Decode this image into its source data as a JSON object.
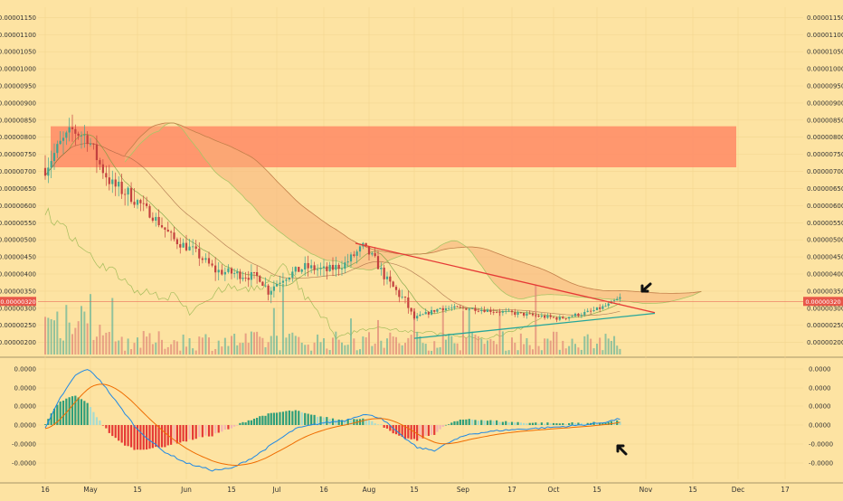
{
  "chart_data": [
    {
      "type": "candlestick",
      "panel": "price",
      "title": "",
      "y_tick_labels": [
        "0.00000200",
        "0.00000250",
        "0.00000300",
        "0.00000350",
        "0.00000400",
        "0.00000450",
        "0.00000500",
        "0.00000550",
        "0.00000600",
        "0.00000650",
        "0.00000700",
        "0.00000750",
        "0.00000800",
        "0.00000850",
        "0.00000900",
        "0.00000950",
        "0.00001000",
        "0.00001050",
        "0.00001100",
        "0.00001150"
      ],
      "ylim": [
        1.7e-06,
        1.18e-05
      ],
      "x_tick_labels": [
        "16",
        "May",
        "15",
        "Jun",
        "15",
        "Jul",
        "16",
        "Aug",
        "15",
        "Sep",
        "17",
        "Oct",
        "15",
        "Nov",
        "15",
        "Dec",
        "17"
      ],
      "current_price_label": "0.00000320",
      "current_price": 3.2e-06,
      "resistance_zone": [
        7.12e-06,
        8.32e-06
      ],
      "trendline_down": {
        "from": [
          "Jul 28",
          4.9e-06
        ],
        "to": [
          "Oct 31",
          2.87e-06
        ]
      },
      "trendline_up": {
        "from": [
          "Aug 16",
          2.12e-06
        ],
        "to": [
          "Oct 31",
          2.85e-06
        ]
      },
      "grid": true,
      "legend": "none",
      "colors": {
        "up": "#3fa590",
        "down": "#c3413f",
        "zone": "#ff8a65",
        "cloud": "#f7b27a",
        "trend_down": "#e53935",
        "trend_up": "#26a69a",
        "price_tag": "#e8574a"
      }
    },
    {
      "type": "histogram+line",
      "panel": "macd",
      "y_tick_labels": [
        "0.0000",
        "0.0000",
        "0.0000",
        "0.0000",
        "-0.0000",
        "-0.0000",
        "-0.0000"
      ],
      "grid": true,
      "colors": {
        "macd": "#1e88e5",
        "signal": "#ef6c00",
        "hist_up_strong": "#2e9e7a",
        "hist_up_weak": "#a6dcd0",
        "hist_down_strong": "#e53935",
        "hist_down_weak": "#f4b3b3"
      }
    }
  ]
}
